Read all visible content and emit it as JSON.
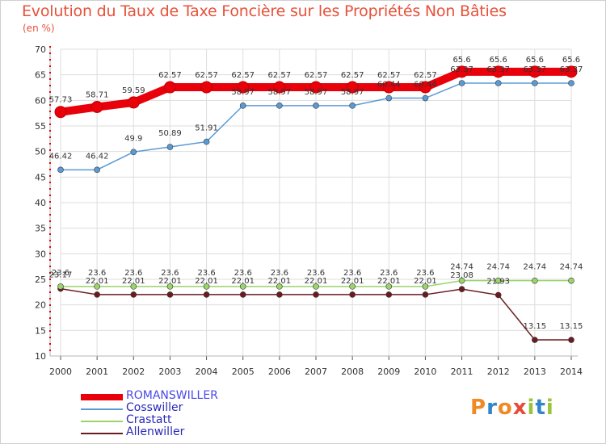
{
  "title": "Evolution du Taux de Taxe Foncière sur les Propriétés Non Bâties",
  "unit_label": "(en %)",
  "logo": {
    "text": "Proxiti",
    "colors": [
      "#f08a24",
      "#2f86c8",
      "#f08a24",
      "#e84a3a",
      "#9ac43a",
      "#2f86c8",
      "#9ac43a"
    ]
  },
  "chart_data": {
    "type": "line",
    "title": "Evolution du Taux de Taxe Foncière sur les Propriétés Non Bâties",
    "ylabel": "(en %)",
    "xlabel": "",
    "ylim": [
      10,
      70
    ],
    "yticks": [
      10,
      15,
      20,
      25,
      30,
      35,
      40,
      45,
      50,
      55,
      60,
      65,
      70
    ],
    "categories": [
      "2000",
      "2001",
      "2002",
      "2003",
      "2004",
      "2005",
      "2006",
      "2007",
      "2008",
      "2009",
      "2010",
      "2011",
      "2012",
      "2013",
      "2014"
    ],
    "series": [
      {
        "name": "ROMANSWILLER",
        "color": "#e8000b",
        "values": [
          57.73,
          58.71,
          59.59,
          62.57,
          62.57,
          62.57,
          62.57,
          62.57,
          62.57,
          62.57,
          62.57,
          65.6,
          65.6,
          65.6,
          65.6
        ],
        "labels": [
          "57.73",
          "58.71",
          "59.59",
          "62.57",
          "62.57",
          "62.57",
          "62.57",
          "62.57",
          "62.57",
          "62.57",
          "62.57",
          "65.6",
          "65.6",
          "65.6",
          "65.6"
        ]
      },
      {
        "name": "Cosswiller",
        "color": "#5b9bd5",
        "values": [
          46.42,
          46.42,
          49.9,
          50.89,
          51.91,
          58.97,
          58.97,
          58.97,
          58.97,
          60.44,
          60.44,
          63.37,
          63.37,
          63.37,
          63.37
        ],
        "labels": [
          "46.42",
          "46.42",
          "49.9",
          "50.89",
          "51.91",
          "58.97",
          "58.97",
          "58.97",
          "58.97",
          "60.44",
          "60.44",
          "63.37",
          "63.37",
          "63.37",
          "63.37"
        ]
      },
      {
        "name": "Crastatt",
        "color": "#9bd46a",
        "values": [
          23.6,
          23.6,
          23.6,
          23.6,
          23.6,
          23.6,
          23.6,
          23.6,
          23.6,
          23.6,
          23.6,
          24.74,
          24.74,
          24.74,
          24.74
        ],
        "labels": [
          "23.6",
          "23.6",
          "23.6",
          "23.6",
          "23.6",
          "23.6",
          "23.6",
          "23.6",
          "23.6",
          "23.6",
          "23.6",
          "24.74",
          "24.74",
          "24.74",
          "24.74"
        ]
      },
      {
        "name": "Allenwiller",
        "color": "#6b1a1f",
        "values": [
          23.17,
          22.01,
          22.01,
          22.01,
          22.01,
          22.01,
          22.01,
          22.01,
          22.01,
          22.01,
          22.01,
          23.08,
          21.93,
          13.15,
          13.15
        ],
        "labels": [
          "23.17",
          "22.01",
          "22.01",
          "22.01",
          "22.01",
          "22.01",
          "22.01",
          "22.01",
          "22.01",
          "22.01",
          "22.01",
          "23.08",
          "21.93",
          "13.15",
          "13.15"
        ]
      }
    ],
    "grid": true,
    "legend": "bottom-left"
  }
}
